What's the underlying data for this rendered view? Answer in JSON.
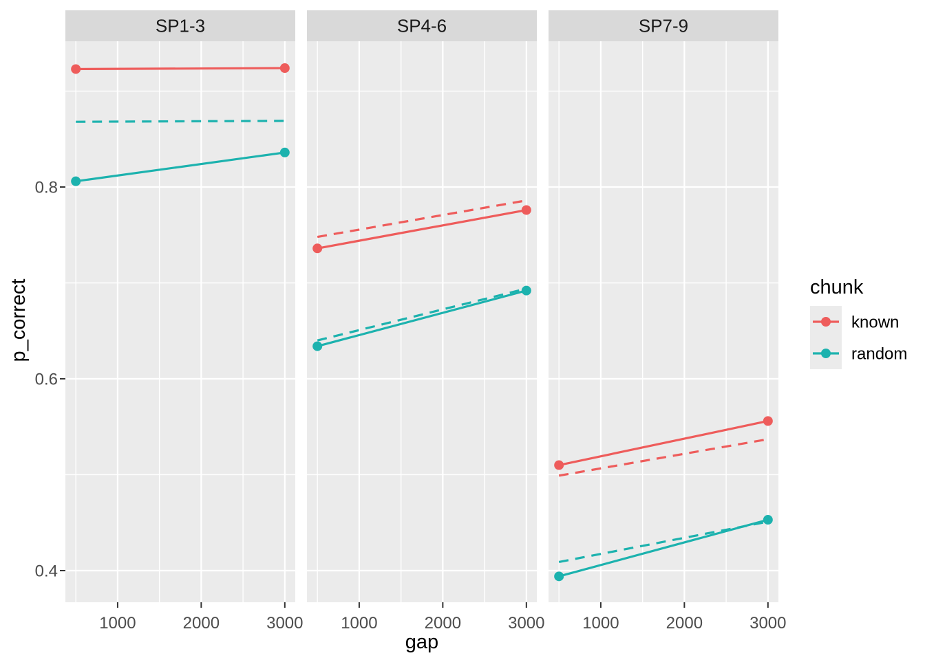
{
  "chart_data": {
    "type": "line",
    "title": "",
    "xlabel": "gap",
    "ylabel": "p_correct",
    "grid": true,
    "legend": {
      "title": "chunk",
      "position": "right",
      "entries": [
        {
          "label": "known",
          "chunk": "known"
        },
        {
          "label": "random",
          "chunk": "random"
        }
      ]
    },
    "x": [
      500,
      3000
    ],
    "x_domain": [
      375,
      3125
    ],
    "y_domain": [
      0.367,
      0.952
    ],
    "x_ticks": {
      "values": [
        1000,
        2000,
        3000
      ],
      "labels": [
        "1000",
        "2000",
        "3000"
      ]
    },
    "y_ticks": {
      "values": [
        0.8,
        0.6,
        0.4
      ],
      "labels": [
        "0.8",
        "0.6",
        "0.4"
      ]
    },
    "x_minor": [
      500,
      1500,
      2500
    ],
    "y_minor": [
      0.9,
      0.7,
      0.5
    ],
    "facets": [
      {
        "label": "SP1-3",
        "series": [
          {
            "chunk": "random",
            "style": "dashed",
            "points": false,
            "values": [
              0.868,
              0.869
            ]
          },
          {
            "chunk": "known",
            "style": "solid",
            "points": true,
            "values": [
              0.923,
              0.924
            ]
          },
          {
            "chunk": "random",
            "style": "solid",
            "points": true,
            "values": [
              0.806,
              0.836
            ]
          }
        ]
      },
      {
        "label": "SP4-6",
        "series": [
          {
            "chunk": "known",
            "style": "dashed",
            "points": false,
            "values": [
              0.748,
              0.786
            ]
          },
          {
            "chunk": "random",
            "style": "dashed",
            "points": false,
            "values": [
              0.64,
              0.694
            ]
          },
          {
            "chunk": "known",
            "style": "solid",
            "points": true,
            "values": [
              0.736,
              0.776
            ]
          },
          {
            "chunk": "random",
            "style": "solid",
            "points": true,
            "values": [
              0.634,
              0.692
            ]
          }
        ]
      },
      {
        "label": "SP7-9",
        "series": [
          {
            "chunk": "known",
            "style": "dashed",
            "points": false,
            "values": [
              0.499,
              0.537
            ]
          },
          {
            "chunk": "random",
            "style": "dashed",
            "points": false,
            "values": [
              0.409,
              0.451
            ]
          },
          {
            "chunk": "known",
            "style": "solid",
            "points": true,
            "values": [
              0.51,
              0.556
            ]
          },
          {
            "chunk": "random",
            "style": "solid",
            "points": true,
            "values": [
              0.394,
              0.453
            ]
          }
        ]
      }
    ],
    "colors": {
      "known": "#ee5c5b",
      "random": "#1cb2ae"
    },
    "theme": {
      "panel_bg": "#ebebeb",
      "strip_bg": "#d9d9d9",
      "grid": "#ffffff",
      "tick_text": "#4d4d4d",
      "strip_text": "#1a1a1a",
      "axis_title": "#000000",
      "tick_mark": "#333333",
      "legend_text": "#000000"
    }
  }
}
